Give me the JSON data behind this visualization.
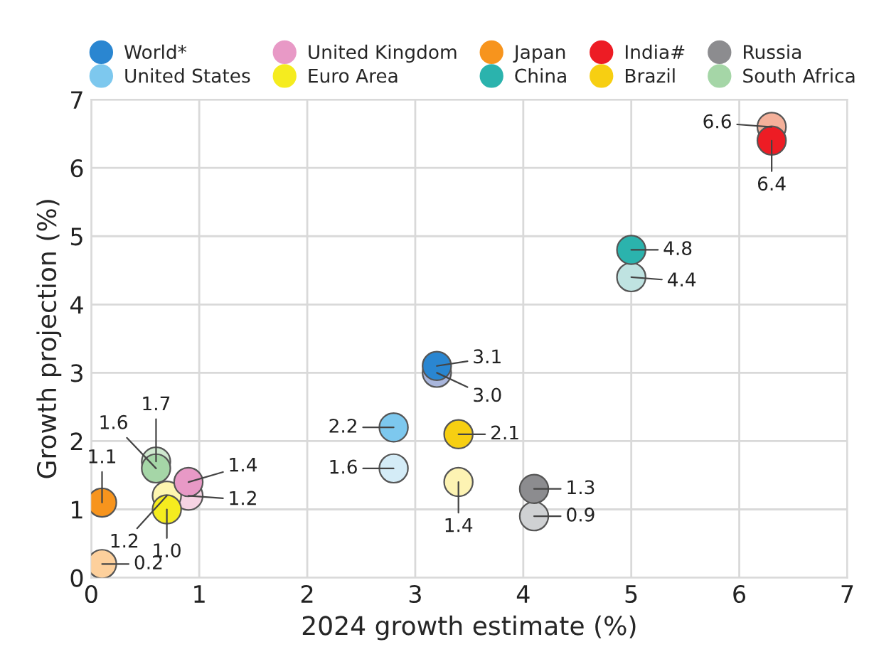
{
  "chart_data": {
    "type": "scatter",
    "xlabel": "2024 growth estimate (%)",
    "ylabel": "Growth projection (%)",
    "xlim": [
      0,
      7
    ],
    "ylim": [
      0,
      7
    ],
    "xticks": [
      0,
      1,
      2,
      3,
      4,
      5,
      6,
      7
    ],
    "yticks": [
      0,
      1,
      2,
      3,
      4,
      5,
      6,
      7
    ],
    "grid": true,
    "legend": "top",
    "marker": "circle",
    "series": [
      {
        "name": "World*",
        "color": "#2a86d1",
        "x": [
          3.2,
          3.2
        ],
        "values": [
          3.1,
          3.0
        ],
        "colors": [
          "#2a86d1",
          "#a9b6dc"
        ],
        "value_labels": [
          "3.1",
          "3.0"
        ]
      },
      {
        "name": "United Kingdom",
        "color": "#e899c6",
        "x": [
          0.9,
          0.9
        ],
        "values": [
          1.4,
          1.2
        ],
        "colors": [
          "#e899c6",
          "#f6d3e3"
        ],
        "value_labels": [
          "1.4",
          "1.2"
        ]
      },
      {
        "name": "Japan",
        "color": "#f7941d",
        "x": [
          0.1,
          0.1
        ],
        "values": [
          1.1,
          0.2
        ],
        "colors": [
          "#f7941d",
          "#fdd09c"
        ],
        "value_labels": [
          "1.1",
          "0.2"
        ]
      },
      {
        "name": "India#",
        "color": "#ed1c24",
        "x": [
          6.3,
          6.3
        ],
        "values": [
          6.4,
          6.6
        ],
        "colors": [
          "#ed1c24",
          "#f4b09a"
        ],
        "value_labels": [
          "6.4",
          "6.6"
        ]
      },
      {
        "name": "Russia",
        "color": "#8c8c8f",
        "x": [
          4.1,
          4.1
        ],
        "values": [
          1.3,
          0.9
        ],
        "colors": [
          "#8c8c8f",
          "#cfd1d3"
        ],
        "value_labels": [
          "1.3",
          "0.9"
        ]
      },
      {
        "name": "United States",
        "color": "#7dc8ee",
        "x": [
          2.8,
          2.8
        ],
        "values": [
          2.2,
          1.6
        ],
        "colors": [
          "#7dc8ee",
          "#d4ecf7"
        ],
        "value_labels": [
          "2.2",
          "1.6"
        ]
      },
      {
        "name": "Euro Area",
        "color": "#f5ec1f",
        "x": [
          0.7,
          0.7
        ],
        "values": [
          1.0,
          1.2
        ],
        "colors": [
          "#f5ec1f",
          "#fdf6b0"
        ],
        "value_labels": [
          "1.0",
          "1.2"
        ]
      },
      {
        "name": "China",
        "color": "#2bb3ad",
        "x": [
          5.0,
          5.0
        ],
        "values": [
          4.8,
          4.4
        ],
        "colors": [
          "#2bb3ad",
          "#bfe3e1"
        ],
        "value_labels": [
          "4.8",
          "4.4"
        ]
      },
      {
        "name": "Brazil",
        "color": "#f7cf12",
        "x": [
          3.4,
          3.4
        ],
        "values": [
          2.1,
          1.4
        ],
        "colors": [
          "#f7cf12",
          "#fdf3b3"
        ],
        "value_labels": [
          "2.1",
          "1.4"
        ]
      },
      {
        "name": "South Africa",
        "color": "#a5d6a7",
        "x": [
          0.6,
          0.6
        ],
        "values": [
          1.6,
          1.7
        ],
        "colors": [
          "#a5d6a7",
          "#cfe8cf"
        ],
        "value_labels": [
          "1.6",
          "1.7"
        ]
      }
    ]
  }
}
